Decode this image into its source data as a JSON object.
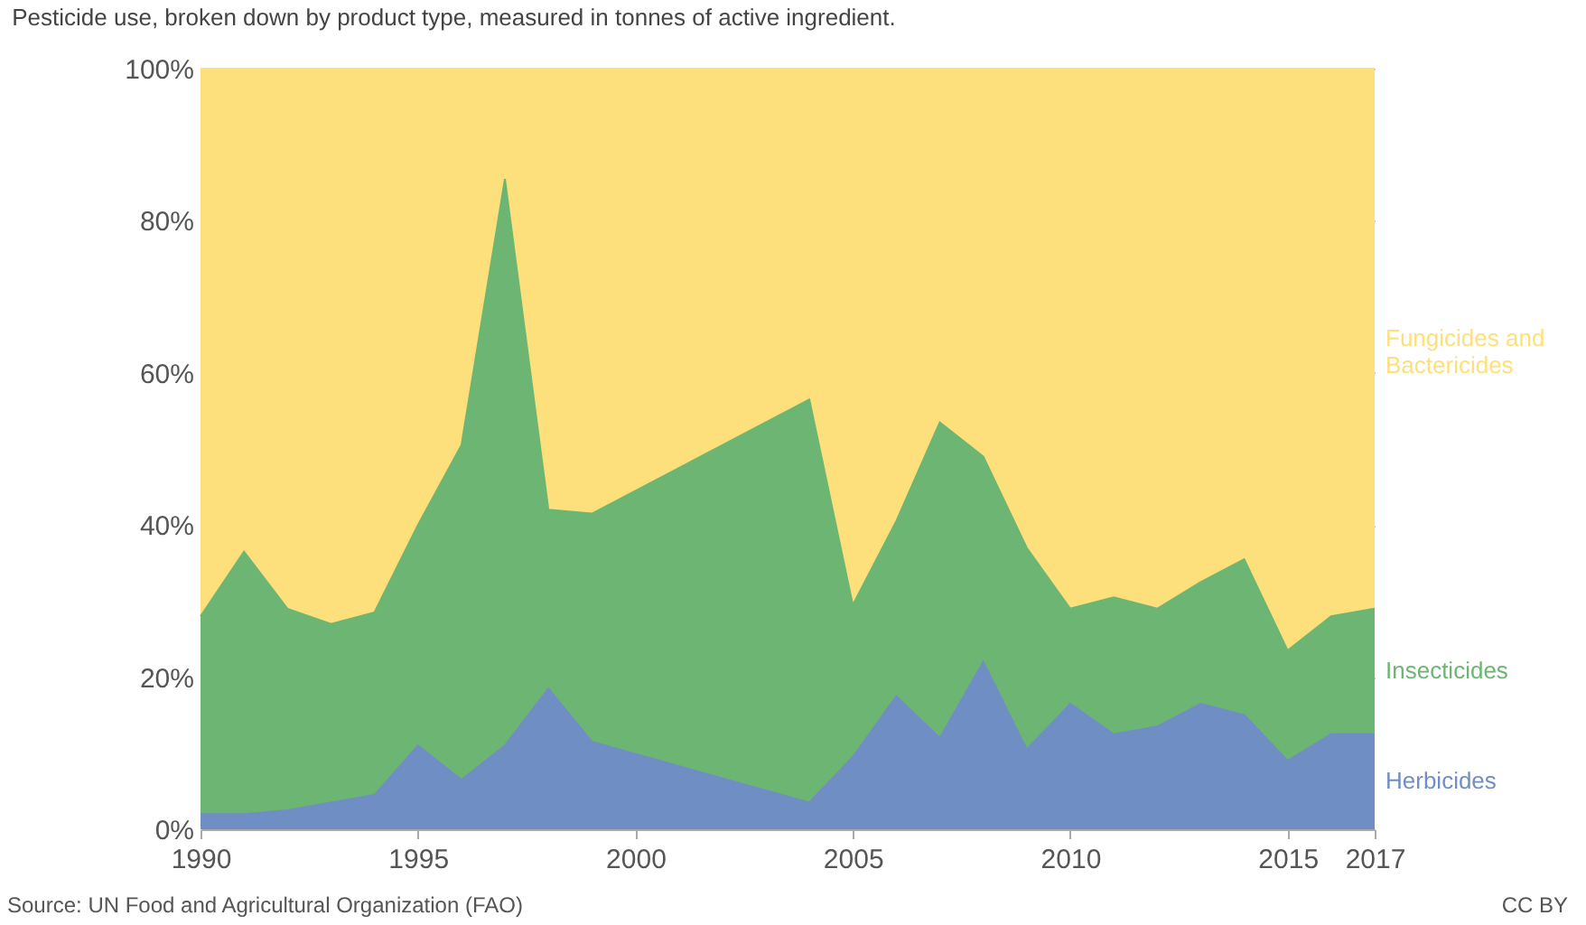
{
  "chart_data": {
    "type": "area",
    "stacked": true,
    "title": "Pesticide use, broken down by product type, measured in tonnes of active ingredient.",
    "x": [
      1990,
      1991,
      1992,
      1993,
      1994,
      1995,
      1996,
      1997,
      1998,
      1999,
      2004,
      2005,
      2006,
      2007,
      2008,
      2009,
      2010,
      2011,
      2012,
      2013,
      2014,
      2015,
      2016,
      2017
    ],
    "series": [
      {
        "name": "Herbicides",
        "color": "#6f8ec4",
        "values": [
          2,
          2,
          2.5,
          3.5,
          4.5,
          11,
          6.5,
          11,
          18.5,
          11.5,
          3.5,
          9.5,
          17.5,
          12,
          22,
          10.5,
          16.5,
          12.5,
          13.5,
          16.5,
          15,
          9,
          12.5,
          12.5
        ]
      },
      {
        "name": "Insecticides",
        "color": "#6db573",
        "values": [
          26,
          34.5,
          26.5,
          23.5,
          24,
          29,
          44,
          74.5,
          23.5,
          30,
          53,
          20,
          23,
          41.5,
          27,
          26.5,
          12.5,
          18,
          15.5,
          16,
          20.5,
          14.5,
          15.5,
          16.5
        ]
      },
      {
        "name": "Fungicides and Bactericides",
        "color": "#fde07b",
        "values": [
          72,
          63.5,
          71,
          73,
          71.5,
          60,
          49.5,
          14.5,
          58,
          58.5,
          43.5,
          70.5,
          59.5,
          46.5,
          51,
          63,
          71,
          69.5,
          71,
          67.5,
          64.5,
          76.5,
          72,
          71
        ]
      }
    ],
    "xlim": [
      1990,
      2017
    ],
    "xticks": [
      1990,
      1995,
      2000,
      2005,
      2010,
      2015,
      2017
    ],
    "ylim": [
      0,
      100
    ],
    "yticks": [
      {
        "value": 0,
        "label": "0%"
      },
      {
        "value": 20,
        "label": "20%"
      },
      {
        "value": 40,
        "label": "40%"
      },
      {
        "value": 60,
        "label": "60%"
      },
      {
        "value": 80,
        "label": "80%"
      },
      {
        "value": 100,
        "label": "100%"
      }
    ],
    "grid": "y",
    "annotations": [
      "Source: UN Food and Agricultural Organization (FAO)",
      "CC BY"
    ]
  }
}
